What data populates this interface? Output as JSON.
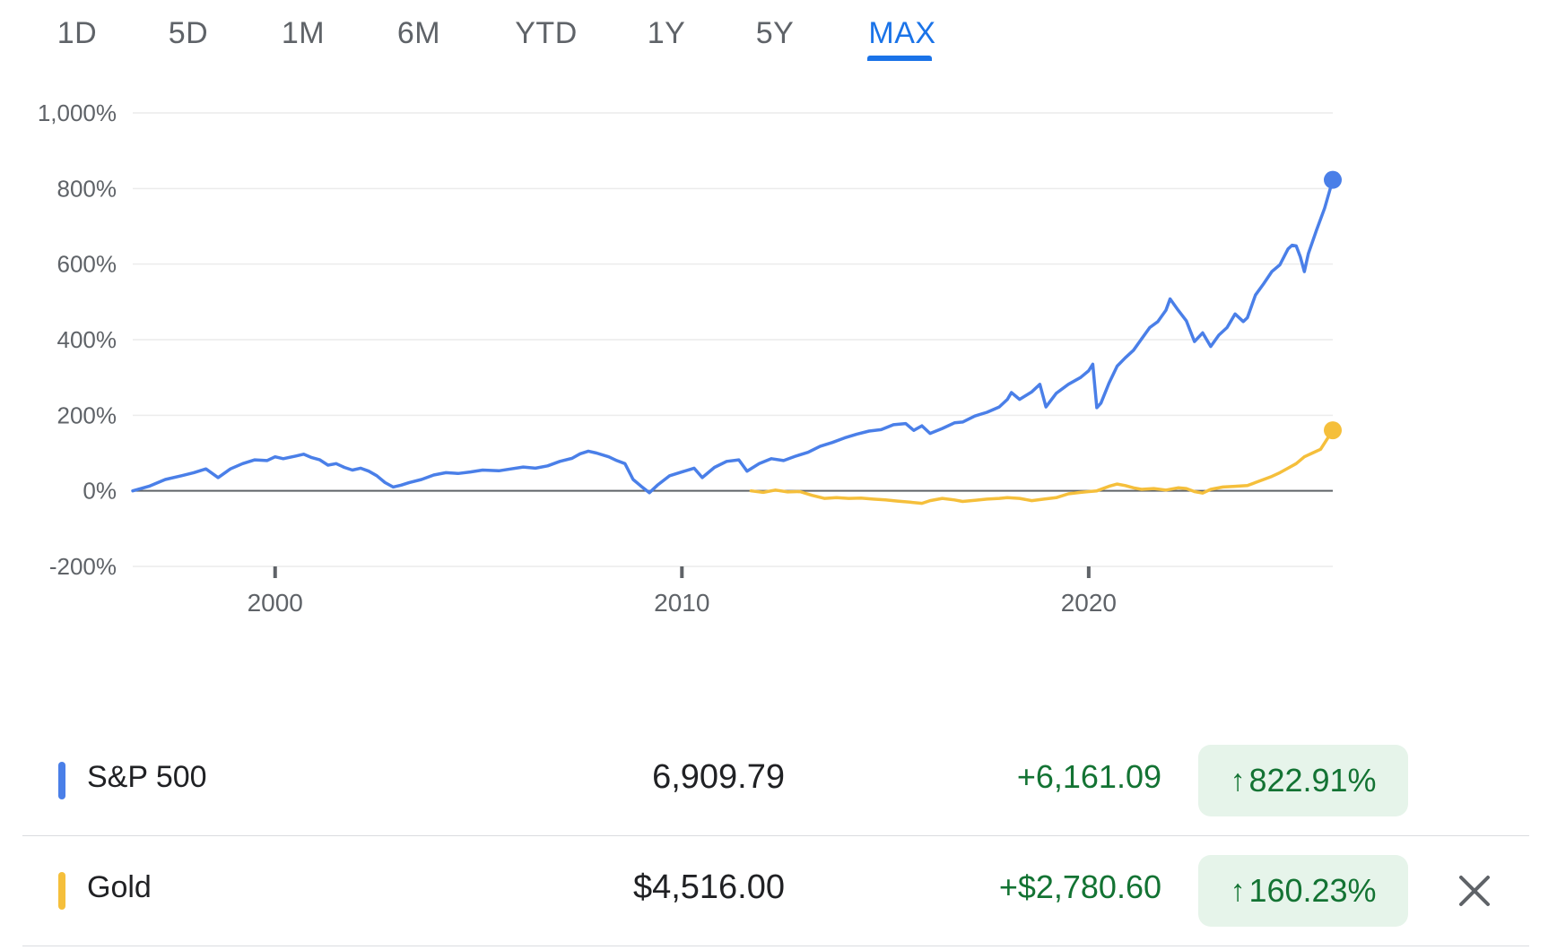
{
  "range_tabs": [
    {
      "label": "1D",
      "active": false
    },
    {
      "label": "5D",
      "active": false
    },
    {
      "label": "1M",
      "active": false
    },
    {
      "label": "6M",
      "active": false
    },
    {
      "label": "YTD",
      "active": false
    },
    {
      "label": "1Y",
      "active": false
    },
    {
      "label": "5Y",
      "active": false
    },
    {
      "label": "MAX",
      "active": true
    }
  ],
  "colors": {
    "active_tab": "#1a73e8",
    "sp500": "#4a7fe8",
    "gold": "#f5bf3b",
    "positive": "#137333",
    "positive_bg": "#e6f4ea"
  },
  "chart_data": {
    "type": "line",
    "y_unit": "%",
    "ylim": [
      -200,
      1000
    ],
    "y_ticks": [
      {
        "value": 1000,
        "label": "1,000%"
      },
      {
        "value": 800,
        "label": "800%"
      },
      {
        "value": 600,
        "label": "600%"
      },
      {
        "value": 400,
        "label": "400%"
      },
      {
        "value": 200,
        "label": "200%"
      },
      {
        "value": 0,
        "label": "0%"
      },
      {
        "value": -200,
        "label": "-200%"
      }
    ],
    "xlim": [
      1996.5,
      2026.0
    ],
    "x_ticks": [
      {
        "value": 2000,
        "label": "2000"
      },
      {
        "value": 2010,
        "label": "2010"
      },
      {
        "value": 2020,
        "label": "2020"
      }
    ],
    "grid": true,
    "series": [
      {
        "name": "S&P 500",
        "color": "#4a7fe8",
        "points": [
          [
            1996.5,
            0
          ],
          [
            1996.9,
            12
          ],
          [
            1997.3,
            30
          ],
          [
            1997.7,
            40
          ],
          [
            1998.0,
            48
          ],
          [
            1998.3,
            58
          ],
          [
            1998.6,
            35
          ],
          [
            1998.9,
            58
          ],
          [
            1999.2,
            72
          ],
          [
            1999.5,
            82
          ],
          [
            1999.8,
            80
          ],
          [
            2000.0,
            90
          ],
          [
            2000.2,
            85
          ],
          [
            2000.5,
            92
          ],
          [
            2000.7,
            97
          ],
          [
            2000.9,
            88
          ],
          [
            2001.1,
            82
          ],
          [
            2001.3,
            68
          ],
          [
            2001.5,
            72
          ],
          [
            2001.7,
            62
          ],
          [
            2001.9,
            55
          ],
          [
            2002.1,
            60
          ],
          [
            2002.3,
            52
          ],
          [
            2002.5,
            40
          ],
          [
            2002.7,
            22
          ],
          [
            2002.9,
            10
          ],
          [
            2003.1,
            15
          ],
          [
            2003.3,
            22
          ],
          [
            2003.6,
            30
          ],
          [
            2003.9,
            42
          ],
          [
            2004.2,
            48
          ],
          [
            2004.5,
            46
          ],
          [
            2004.8,
            50
          ],
          [
            2005.1,
            55
          ],
          [
            2005.5,
            53
          ],
          [
            2005.8,
            58
          ],
          [
            2006.1,
            63
          ],
          [
            2006.4,
            60
          ],
          [
            2006.7,
            66
          ],
          [
            2007.0,
            78
          ],
          [
            2007.3,
            86
          ],
          [
            2007.5,
            98
          ],
          [
            2007.7,
            105
          ],
          [
            2007.9,
            100
          ],
          [
            2008.2,
            90
          ],
          [
            2008.4,
            80
          ],
          [
            2008.6,
            72
          ],
          [
            2008.8,
            30
          ],
          [
            2009.0,
            12
          ],
          [
            2009.2,
            -5
          ],
          [
            2009.4,
            15
          ],
          [
            2009.7,
            40
          ],
          [
            2010.0,
            50
          ],
          [
            2010.3,
            60
          ],
          [
            2010.5,
            35
          ],
          [
            2010.8,
            62
          ],
          [
            2011.1,
            78
          ],
          [
            2011.4,
            82
          ],
          [
            2011.6,
            52
          ],
          [
            2011.9,
            72
          ],
          [
            2012.2,
            85
          ],
          [
            2012.5,
            80
          ],
          [
            2012.8,
            92
          ],
          [
            2013.1,
            102
          ],
          [
            2013.4,
            118
          ],
          [
            2013.7,
            128
          ],
          [
            2014.0,
            140
          ],
          [
            2014.3,
            150
          ],
          [
            2014.6,
            158
          ],
          [
            2014.9,
            162
          ],
          [
            2015.2,
            175
          ],
          [
            2015.5,
            178
          ],
          [
            2015.7,
            160
          ],
          [
            2015.9,
            172
          ],
          [
            2016.1,
            152
          ],
          [
            2016.4,
            165
          ],
          [
            2016.7,
            180
          ],
          [
            2016.9,
            182
          ],
          [
            2017.2,
            198
          ],
          [
            2017.5,
            208
          ],
          [
            2017.8,
            222
          ],
          [
            2018.0,
            242
          ],
          [
            2018.1,
            260
          ],
          [
            2018.3,
            242
          ],
          [
            2018.6,
            262
          ],
          [
            2018.8,
            282
          ],
          [
            2018.95,
            222
          ],
          [
            2019.2,
            258
          ],
          [
            2019.5,
            282
          ],
          [
            2019.8,
            300
          ],
          [
            2020.0,
            318
          ],
          [
            2020.1,
            335
          ],
          [
            2020.2,
            220
          ],
          [
            2020.3,
            232
          ],
          [
            2020.5,
            285
          ],
          [
            2020.7,
            330
          ],
          [
            2020.9,
            352
          ],
          [
            2021.1,
            372
          ],
          [
            2021.3,
            402
          ],
          [
            2021.5,
            432
          ],
          [
            2021.7,
            448
          ],
          [
            2021.9,
            478
          ],
          [
            2022.0,
            508
          ],
          [
            2022.2,
            478
          ],
          [
            2022.4,
            450
          ],
          [
            2022.6,
            395
          ],
          [
            2022.8,
            418
          ],
          [
            2023.0,
            382
          ],
          [
            2023.2,
            412
          ],
          [
            2023.4,
            432
          ],
          [
            2023.6,
            468
          ],
          [
            2023.8,
            448
          ],
          [
            2023.9,
            458
          ],
          [
            2024.1,
            518
          ],
          [
            2024.3,
            548
          ],
          [
            2024.5,
            580
          ],
          [
            2024.7,
            598
          ],
          [
            2024.9,
            640
          ],
          [
            2025.0,
            650
          ],
          [
            2025.1,
            648
          ],
          [
            2025.2,
            620
          ],
          [
            2025.3,
            580
          ],
          [
            2025.4,
            628
          ],
          [
            2025.6,
            690
          ],
          [
            2025.8,
            748
          ],
          [
            2026.0,
            822.91
          ]
        ]
      },
      {
        "name": "Gold",
        "color": "#f5bf3b",
        "points": [
          [
            2011.7,
            0
          ],
          [
            2012.0,
            -4
          ],
          [
            2012.3,
            2
          ],
          [
            2012.6,
            -3
          ],
          [
            2012.9,
            -2
          ],
          [
            2013.2,
            -12
          ],
          [
            2013.5,
            -20
          ],
          [
            2013.8,
            -18
          ],
          [
            2014.1,
            -20
          ],
          [
            2014.4,
            -19
          ],
          [
            2014.7,
            -22
          ],
          [
            2015.0,
            -24
          ],
          [
            2015.3,
            -27
          ],
          [
            2015.6,
            -30
          ],
          [
            2015.9,
            -33
          ],
          [
            2016.1,
            -26
          ],
          [
            2016.4,
            -20
          ],
          [
            2016.7,
            -24
          ],
          [
            2016.9,
            -28
          ],
          [
            2017.2,
            -25
          ],
          [
            2017.5,
            -22
          ],
          [
            2017.8,
            -20
          ],
          [
            2018.0,
            -18
          ],
          [
            2018.3,
            -20
          ],
          [
            2018.6,
            -26
          ],
          [
            2018.9,
            -22
          ],
          [
            2019.2,
            -18
          ],
          [
            2019.5,
            -8
          ],
          [
            2019.8,
            -4
          ],
          [
            2020.0,
            -2
          ],
          [
            2020.2,
            0
          ],
          [
            2020.5,
            12
          ],
          [
            2020.7,
            18
          ],
          [
            2020.9,
            14
          ],
          [
            2021.1,
            8
          ],
          [
            2021.3,
            4
          ],
          [
            2021.6,
            6
          ],
          [
            2021.9,
            2
          ],
          [
            2022.2,
            8
          ],
          [
            2022.4,
            6
          ],
          [
            2022.6,
            -2
          ],
          [
            2022.8,
            -6
          ],
          [
            2023.0,
            4
          ],
          [
            2023.3,
            10
          ],
          [
            2023.6,
            12
          ],
          [
            2023.9,
            14
          ],
          [
            2024.1,
            22
          ],
          [
            2024.3,
            30
          ],
          [
            2024.5,
            38
          ],
          [
            2024.7,
            48
          ],
          [
            2024.9,
            60
          ],
          [
            2025.1,
            72
          ],
          [
            2025.3,
            90
          ],
          [
            2025.5,
            100
          ],
          [
            2025.7,
            110
          ],
          [
            2025.85,
            135
          ],
          [
            2026.0,
            160.23
          ]
        ]
      }
    ]
  },
  "legend_rows": [
    {
      "name": "S&P 500",
      "price": "6,909.79",
      "change": "+6,161.09",
      "percent": "822.91%",
      "arrow": "↑",
      "has_close": false
    },
    {
      "name": "Gold",
      "price": "$4,516.00",
      "change": "+$2,780.60",
      "percent": "160.23%",
      "arrow": "↑",
      "has_close": true
    }
  ]
}
